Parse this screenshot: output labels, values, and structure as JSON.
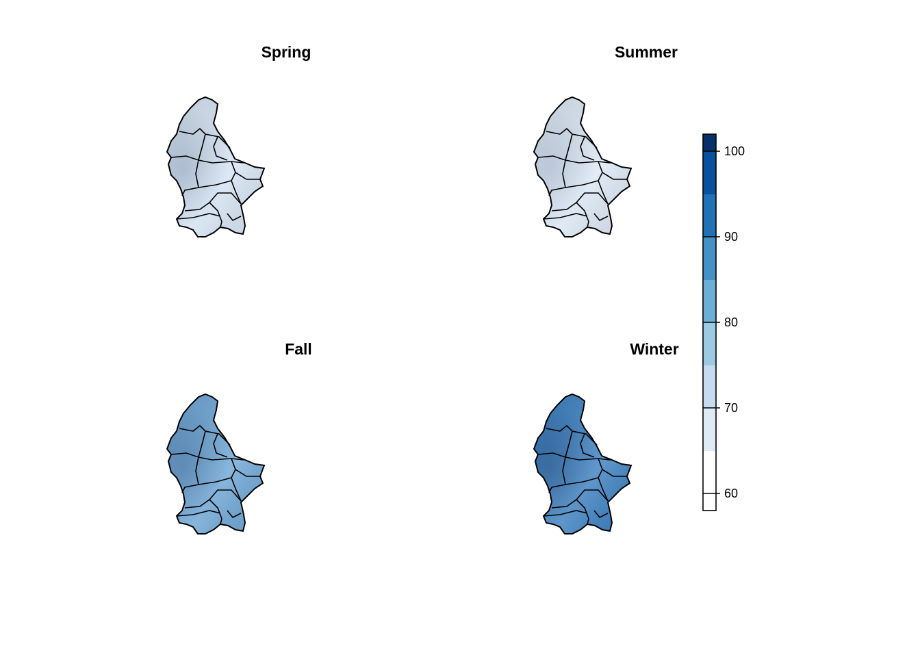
{
  "panels": [
    {
      "title": "Spring",
      "level": 0.18,
      "base_color": "#d6e4f3"
    },
    {
      "title": "Summer",
      "level": 0.12,
      "base_color": "#dce8f5"
    },
    {
      "title": "Fall",
      "level": 0.55,
      "base_color": "#6fa7d6"
    },
    {
      "title": "Winter",
      "level": 0.72,
      "base_color": "#3e82c2"
    }
  ],
  "legend": {
    "range": [
      58,
      102
    ],
    "ticks": [
      "60",
      "70",
      "80",
      "90",
      "100"
    ],
    "tick_values": [
      60,
      70,
      80,
      90,
      100
    ],
    "colors": [
      "#ffffff",
      "#deebf7",
      "#c6dbef",
      "#9ecae1",
      "#6baed6",
      "#4292c6",
      "#2171b5",
      "#08519c",
      "#08306b"
    ]
  }
}
